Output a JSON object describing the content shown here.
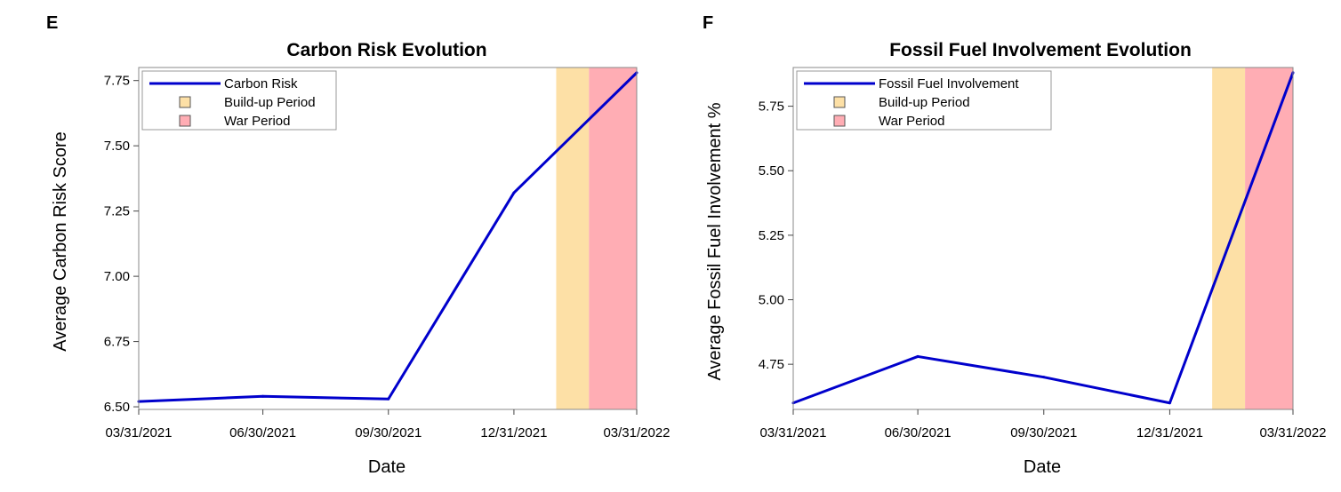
{
  "chart_data": [
    {
      "panel": "E",
      "type": "line",
      "title": "Carbon Risk Evolution",
      "xlabel": "Date",
      "ylabel": "Average Carbon Risk Score",
      "x": [
        "03/31/2021",
        "06/30/2021",
        "09/30/2021",
        "12/31/2021",
        "03/31/2022"
      ],
      "x_ticks": [
        "03/31/2021",
        "06/30/2021",
        "09/30/2021",
        "12/31/2021",
        "03/31/2022"
      ],
      "y_ticks": [
        "6.50",
        "6.75",
        "7.00",
        "7.25",
        "7.50",
        "7.75"
      ],
      "ylim": [
        6.49,
        7.8
      ],
      "series": [
        {
          "name": "Carbon Risk",
          "color": "#0000cc",
          "values": [
            6.52,
            6.54,
            6.53,
            7.32,
            7.78
          ]
        }
      ],
      "periods": [
        {
          "name": "Build-up Period",
          "color": "#fde0a6",
          "start": "01/31/2022",
          "end": "02/24/2022"
        },
        {
          "name": "War Period",
          "color": "#ffadb4",
          "start": "02/24/2022",
          "end": "03/31/2022"
        }
      ],
      "legend": {
        "position": "top-left"
      },
      "grid": false
    },
    {
      "panel": "F",
      "type": "line",
      "title": "Fossil Fuel Involvement Evolution",
      "xlabel": "Date",
      "ylabel": "Average Fossil Fuel Involvement %",
      "x": [
        "03/31/2021",
        "06/30/2021",
        "09/30/2021",
        "12/31/2021",
        "03/31/2022"
      ],
      "x_ticks": [
        "03/31/2021",
        "06/30/2021",
        "09/30/2021",
        "12/31/2021",
        "03/31/2022"
      ],
      "y_ticks": [
        "4.75",
        "5.00",
        "5.25",
        "5.50",
        "5.75"
      ],
      "ylim": [
        4.575,
        5.9
      ],
      "series": [
        {
          "name": "Fossil Fuel Involvement",
          "color": "#0000cc",
          "values": [
            4.6,
            4.78,
            4.7,
            4.6,
            5.88
          ]
        }
      ],
      "periods": [
        {
          "name": "Build-up Period",
          "color": "#fde0a6",
          "start": "01/31/2022",
          "end": "02/24/2022"
        },
        {
          "name": "War Period",
          "color": "#ffadb4",
          "start": "02/24/2022",
          "end": "03/31/2022"
        }
      ],
      "legend": {
        "position": "top-left"
      },
      "grid": false
    }
  ]
}
